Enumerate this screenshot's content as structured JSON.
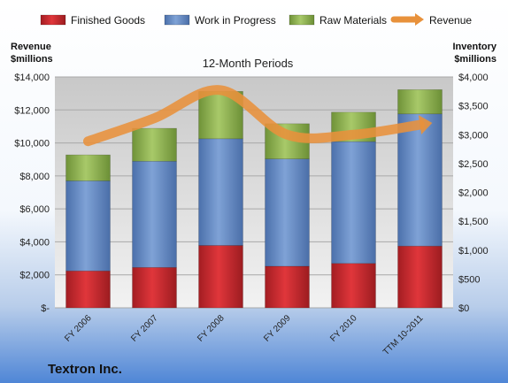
{
  "chart_data": {
    "type": "bar",
    "subtitle": "12-Month Periods",
    "company": "Textron Inc.",
    "left_axis_title": [
      "Revenue",
      "$millions"
    ],
    "right_axis_title": [
      "Inventory",
      "$millions"
    ],
    "categories": [
      "FY 2006",
      "FY 2007",
      "FY 2008",
      "FY 2009",
      "FY 2010",
      "TTM 10-2011"
    ],
    "series": [
      {
        "name": "Finished Goods",
        "kind": "stacked-bar",
        "axis": "right",
        "color": "#c0262b",
        "values": [
          640,
          700,
          1080,
          720,
          770,
          1070
        ]
      },
      {
        "name": "Work in Progress",
        "kind": "stacked-bar",
        "axis": "right",
        "color": "#5f86c2",
        "values": [
          1560,
          1840,
          1850,
          1860,
          2110,
          2290
        ]
      },
      {
        "name": "Raw Materials",
        "kind": "stacked-bar",
        "axis": "right",
        "color": "#8db04c",
        "values": [
          450,
          570,
          820,
          610,
          510,
          420
        ]
      },
      {
        "name": "Revenue",
        "kind": "line",
        "axis": "left",
        "color": "#e8913b",
        "values": [
          10100,
          11500,
          13200,
          10500,
          10500,
          11100
        ]
      }
    ],
    "left_axis": {
      "ylim": [
        0,
        14000
      ],
      "ticks": [
        "$-",
        "$2,000",
        "$4,000",
        "$6,000",
        "$8,000",
        "$10,000",
        "$12,000",
        "$14,000"
      ]
    },
    "right_axis": {
      "ylim": [
        0,
        4000
      ],
      "ticks": [
        "$0",
        "$500",
        "$1,000",
        "$1,500",
        "$2,000",
        "$2,500",
        "$3,000",
        "$3,500",
        "$4,000"
      ]
    },
    "legend_position": "top",
    "grid": true
  }
}
